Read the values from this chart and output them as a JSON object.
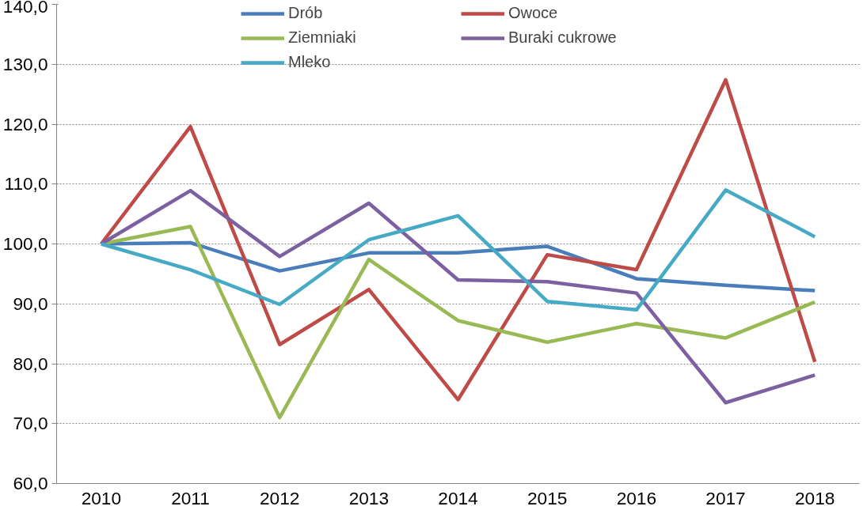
{
  "chart_data": {
    "type": "line",
    "categories": [
      "2010",
      "2011",
      "2012",
      "2013",
      "2014",
      "2015",
      "2016",
      "2017",
      "2018"
    ],
    "series": [
      {
        "name": "Drób",
        "color": "#4a7ebb",
        "values": [
          100.0,
          100.2,
          95.5,
          98.5,
          98.5,
          99.6,
          94.2,
          93.1,
          92.2
        ]
      },
      {
        "name": "Owoce",
        "color": "#be4b48",
        "values": [
          100.0,
          119.6,
          83.2,
          92.4,
          74.0,
          98.2,
          95.7,
          127.4,
          80.3
        ]
      },
      {
        "name": "Ziemniaki",
        "color": "#98b954",
        "values": [
          100.0,
          102.9,
          71.0,
          97.4,
          87.2,
          83.6,
          86.7,
          84.3,
          90.3
        ]
      },
      {
        "name": "Buraki cukrowe",
        "color": "#7d60a0",
        "values": [
          100.0,
          108.9,
          97.9,
          106.8,
          94.0,
          93.7,
          91.8,
          73.5,
          78.1
        ]
      },
      {
        "name": "Mleko",
        "color": "#46aac5",
        "values": [
          100.0,
          95.7,
          89.9,
          100.7,
          104.7,
          90.4,
          89.0,
          109.0,
          101.2
        ]
      }
    ],
    "ylim": [
      60,
      140
    ],
    "yticks": [
      {
        "value": 60,
        "label": "60,0"
      },
      {
        "value": 70,
        "label": "70,0"
      },
      {
        "value": 80,
        "label": "80,0"
      },
      {
        "value": 90,
        "label": "90,0"
      },
      {
        "value": 100,
        "label": "100,0"
      },
      {
        "value": 110,
        "label": "110,0"
      },
      {
        "value": 120,
        "label": "120,0"
      },
      {
        "value": 130,
        "label": "130,0"
      },
      {
        "value": 140,
        "label": "140,0"
      }
    ],
    "grid": "y",
    "legend": "top",
    "marker": "none",
    "line_style": "solid"
  }
}
